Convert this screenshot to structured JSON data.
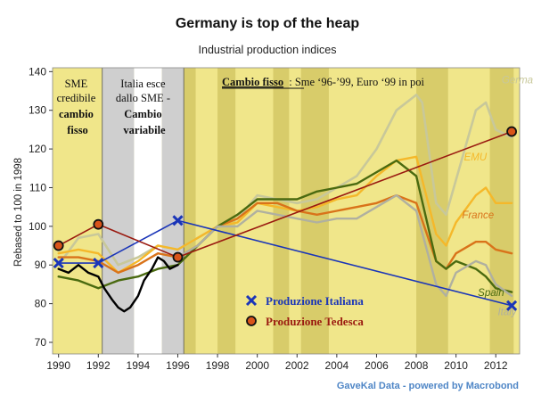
{
  "chart_data": {
    "type": "line",
    "title": "Germany is top of the heap",
    "subtitle": "Industrial production indices",
    "ylabel": "Rebased to 100 in 1998",
    "xlabel": "",
    "xlim": [
      1989.7,
      2013.2
    ],
    "ylim": [
      67,
      141
    ],
    "x_ticks": [
      1990,
      1992,
      1994,
      1996,
      1998,
      2000,
      2002,
      2004,
      2006,
      2008,
      2010,
      2012
    ],
    "x_tick_labels": [
      "1990",
      "1992",
      "1994",
      "1996",
      "1998",
      "2000",
      "2002",
      "2004",
      "2006",
      "2008",
      "2010",
      "2012"
    ],
    "y_ticks": [
      70,
      80,
      90,
      100,
      110,
      120,
      130,
      140
    ],
    "y_tick_labels": [
      "70",
      "80",
      "90",
      "100",
      "110",
      "120",
      "130",
      "140"
    ],
    "grid": false,
    "credit": "GaveKal Data - powered by Macrobond",
    "colors": {
      "plot_bg": "#f0e68a",
      "stripe": "#d8cc6a",
      "gray_band": "#cfcfcf",
      "white_band": "#ffffff",
      "germany": "#c8c89a",
      "emu": "#f5b82a",
      "france": "#d9731a",
      "spain": "#4a6a10",
      "italy": "#b0b0a0",
      "italy_90s": "#000000",
      "ital_arrow": "#1a35b8",
      "ger_arrow": "#9a1a10",
      "credit": "#4f86c6"
    },
    "recession_stripes": [
      [
        1991.1,
        1991.9
      ],
      [
        1996.3,
        1996.9
      ],
      [
        1998.0,
        1998.9
      ],
      [
        2000.8,
        2001.6
      ],
      [
        2002.2,
        2003.6
      ],
      [
        2008.0,
        2009.6
      ],
      [
        2011.7,
        2012.9
      ]
    ],
    "regimes": [
      {
        "from": 1989.7,
        "to": 1992.2,
        "fill": "#f0e68a"
      },
      {
        "from": 1992.2,
        "to": 1993.8,
        "fill": "#cfcfcf"
      },
      {
        "from": 1993.8,
        "to": 1995.2,
        "fill": "#ffffff"
      },
      {
        "from": 1995.2,
        "to": 1996.3,
        "fill": "#cfcfcf"
      }
    ],
    "annotations": {
      "sme_line1": "SME",
      "sme_line2": "credibile",
      "sme_line3": "cambio",
      "sme_line4": "fisso",
      "esce_line1": "Italia esce",
      "esce_line2": "dallo SME -",
      "esce_line3": "Cambio",
      "esce_line4": "variabile",
      "fisso_bold": "Cambio fisso",
      "fisso_rest": ": Sme ‘96-’99, Euro ‘99 in poi",
      "legend_ital": "Produzione Italiana",
      "legend_ger": "Produzione Tedesca"
    },
    "series_labels": [
      {
        "name": "Germany",
        "x": 2012.3,
        "y": 137
      },
      {
        "name": "EMU",
        "x": 2010.4,
        "y": 117
      },
      {
        "name": "France",
        "x": 2010.3,
        "y": 102
      },
      {
        "name": "Spain",
        "x": 2011.1,
        "y": 82
      },
      {
        "name": "Italy",
        "x": 2012.1,
        "y": 77
      }
    ],
    "series": [
      {
        "name": "Germany",
        "x": [
          1990,
          1991,
          1992,
          1993,
          1994,
          1995,
          1996,
          1997,
          1998,
          1999,
          2000,
          2001,
          2002,
          2003,
          2004,
          2005,
          2006,
          2007,
          2008,
          2008.3,
          2009,
          2009.5,
          2010,
          2011,
          2011.5,
          2012,
          2012.8
        ],
        "y": [
          90,
          97,
          98,
          90,
          92,
          95,
          94,
          97,
          100,
          102,
          108,
          107,
          106,
          107,
          110,
          113,
          120,
          130,
          134,
          132,
          106,
          103,
          112,
          130,
          132,
          125,
          123
        ]
      },
      {
        "name": "EMU",
        "x": [
          1990,
          1991,
          1992,
          1993,
          1994,
          1995,
          1996,
          1997,
          1998,
          1999,
          2000,
          2001,
          2002,
          2003,
          2004,
          2005,
          2006,
          2007,
          2008,
          2009,
          2009.5,
          2010,
          2011,
          2011.5,
          2012,
          2012.8
        ],
        "y": [
          93,
          94,
          93,
          88,
          91,
          95,
          94,
          97,
          100,
          101,
          106,
          105,
          104,
          105,
          107,
          108,
          113,
          117,
          118,
          98,
          95,
          101,
          108,
          110,
          106,
          106
        ]
      },
      {
        "name": "France",
        "x": [
          1990,
          1991,
          1992,
          1993,
          1994,
          1995,
          1996,
          1997,
          1998,
          1999,
          2000,
          2001,
          2002,
          2003,
          2004,
          2005,
          2006,
          2007,
          2008,
          2009,
          2009.5,
          2010,
          2011,
          2011.5,
          2012,
          2012.8
        ],
        "y": [
          92,
          92,
          91,
          88,
          90,
          93,
          92,
          95,
          100,
          102,
          106,
          106,
          104,
          103,
          104,
          105,
          106,
          108,
          106,
          91,
          89,
          93,
          96,
          96,
          94,
          93
        ]
      },
      {
        "name": "Spain",
        "x": [
          1990,
          1991,
          1992,
          1993,
          1994,
          1995,
          1996,
          1997,
          1998,
          1999,
          2000,
          2001,
          2002,
          2003,
          2004,
          2005,
          2006,
          2007,
          2008,
          2009,
          2009.5,
          2010,
          2011,
          2011.5,
          2012,
          2012.8
        ],
        "y": [
          87,
          86,
          84,
          86,
          87,
          89,
          90,
          95,
          100,
          103,
          107,
          107,
          107,
          109,
          110,
          111,
          114,
          117,
          113,
          91,
          89,
          91,
          89,
          87,
          84,
          83
        ]
      },
      {
        "name": "Italy",
        "x": [
          1996,
          1997,
          1998,
          1999,
          2000,
          2001,
          2002,
          2003,
          2004,
          2005,
          2006,
          2007,
          2008,
          2009,
          2009.5,
          2010,
          2011,
          2011.5,
          2012,
          2012.8
        ],
        "y": [
          92,
          95,
          100,
          100,
          104,
          103,
          102,
          101,
          102,
          102,
          105,
          108,
          104,
          85,
          82,
          88,
          91,
          90,
          85,
          82
        ]
      },
      {
        "name": "Italy (1990-96)",
        "x": [
          1990,
          1990.5,
          1991,
          1991.5,
          1992,
          1992.3,
          1992.7,
          1993,
          1993.3,
          1993.6,
          1994,
          1994.3,
          1994.7,
          1995,
          1995.3,
          1995.6,
          1996
        ],
        "y": [
          89,
          88,
          90,
          88,
          87,
          84,
          81,
          79,
          78,
          79,
          82,
          86,
          89,
          92,
          91,
          89,
          90
        ]
      }
    ],
    "overlay": {
      "italian": {
        "x": [
          1990,
          1992,
          1996,
          2012.8
        ],
        "y": [
          90.5,
          90.5,
          101.5,
          79.5
        ]
      },
      "german": {
        "x": [
          1990,
          1992,
          1996,
          2012.8
        ],
        "y": [
          95,
          100.5,
          92,
          124.5
        ]
      }
    }
  }
}
